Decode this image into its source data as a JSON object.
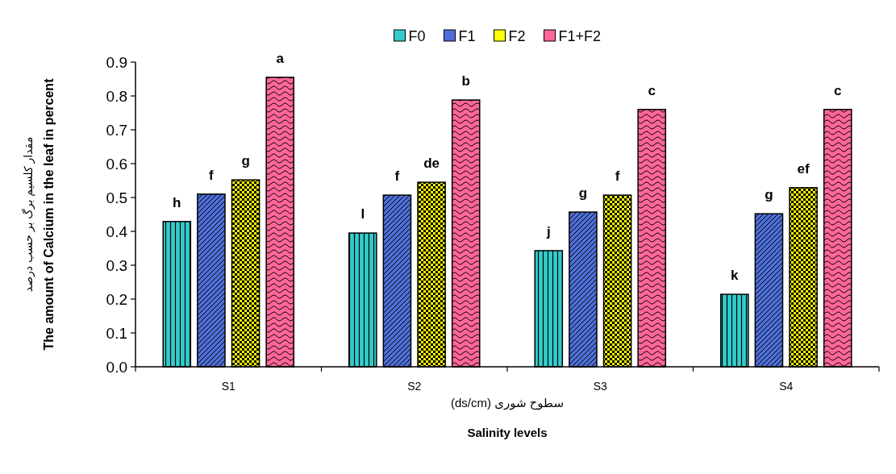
{
  "chart_data": {
    "type": "bar",
    "xlabel": "سطوح شوری (ds/cm)\nSalinity levels",
    "ylabel": "مقدار کلسیم برگ بر حسب درصد\nThe amount of Calcium in the leaf in percent",
    "categories": [
      "S1",
      "S2",
      "S3",
      "S4"
    ],
    "series": [
      {
        "name": "F0",
        "color": "#33cccc",
        "values": [
          0.429,
          0.395,
          0.343,
          0.214
        ],
        "value_labels": [
          "h",
          "l",
          "j",
          "k"
        ]
      },
      {
        "name": "F1",
        "color": "#4f6fd8",
        "values": [
          0.51,
          0.507,
          0.457,
          0.452
        ],
        "value_labels": [
          "f",
          "f",
          "g",
          "g"
        ]
      },
      {
        "name": "F2",
        "color": "#ffff00",
        "values": [
          0.552,
          0.545,
          0.507,
          0.529
        ],
        "value_labels": [
          "g",
          "de",
          "f",
          "ef"
        ]
      },
      {
        "name": "F1+F2",
        "color": "#ff6699",
        "values": [
          0.855,
          0.788,
          0.76,
          0.76
        ],
        "value_labels": [
          "a",
          "b",
          "c",
          "c"
        ]
      }
    ],
    "ylim": [
      0,
      0.9
    ],
    "yticks": [
      {
        "value": 0,
        "label": "0.0"
      },
      {
        "value": 0.1,
        "label": "0.1"
      },
      {
        "value": 0.2,
        "label": "0.2"
      },
      {
        "value": 0.3,
        "label": "0.3"
      },
      {
        "value": 0.4,
        "label": "0.4"
      },
      {
        "value": 0.5,
        "label": "0.5"
      },
      {
        "value": 0.6,
        "label": "0.6"
      },
      {
        "value": 0.7,
        "label": "0.7"
      },
      {
        "value": 0.8,
        "label": "0.8"
      },
      {
        "value": 0.9,
        "label": "0.9"
      }
    ],
    "legend": "top",
    "grid": false
  }
}
